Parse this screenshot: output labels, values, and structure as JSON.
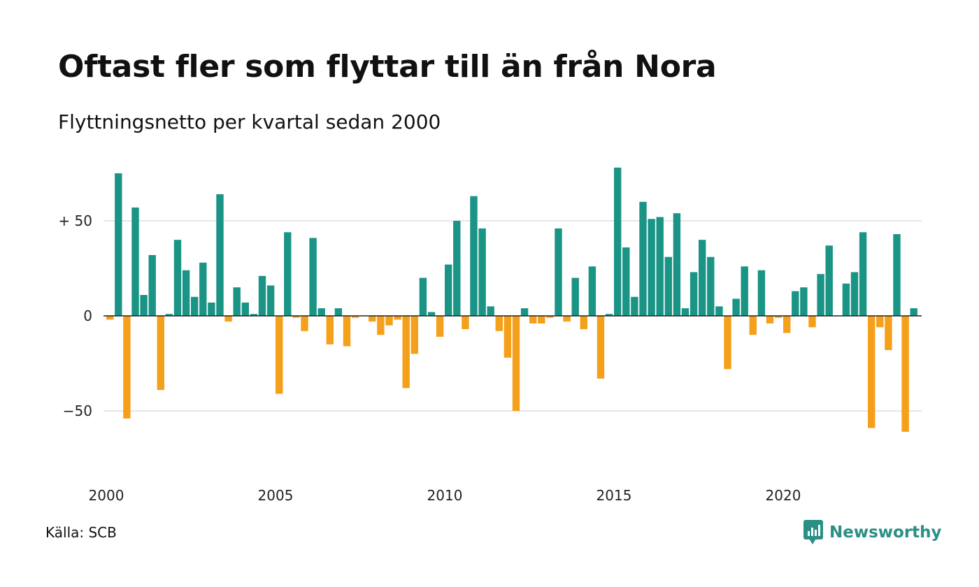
{
  "header": {
    "title": "Oftast fler som flyttar till än från Nora",
    "subtitle": "Flyttningsnetto per kvartal sedan 2000"
  },
  "footer": {
    "source": "Källa: SCB",
    "brand": "Newsworthy"
  },
  "colors": {
    "positive": "#1a9485",
    "negative": "#f5a01a",
    "grid": "#dddddd",
    "axis": "#222222",
    "brand": "#2a8f84"
  },
  "chart_data": {
    "type": "bar",
    "title": "Oftast fler som flyttar till än från Nora",
    "subtitle": "Flyttningsnetto per kvartal sedan 2000",
    "xlabel": "",
    "ylabel": "",
    "start_year": 2000,
    "periods_per_year": 4,
    "ylim": [
      -75,
      80
    ],
    "yticks": [
      {
        "value": 50,
        "label": "+ 50"
      },
      {
        "value": 0,
        "label": "0"
      },
      {
        "value": -50,
        "label": "−50"
      }
    ],
    "xticks": [
      {
        "year": 2000,
        "label": "2000"
      },
      {
        "year": 2005,
        "label": "2005"
      },
      {
        "year": 2010,
        "label": "2010"
      },
      {
        "year": 2015,
        "label": "2015"
      },
      {
        "year": 2020,
        "label": "2020"
      }
    ],
    "grid": true,
    "values": [
      -2,
      75,
      -54,
      57,
      11,
      32,
      -39,
      1,
      40,
      24,
      10,
      28,
      7,
      64,
      -3,
      15,
      7,
      1,
      21,
      16,
      -41,
      44,
      -1,
      -8,
      41,
      4,
      -15,
      4,
      -16,
      -1,
      0,
      -3,
      -10,
      -5,
      -2,
      -38,
      -20,
      20,
      2,
      -11,
      27,
      50,
      -7,
      63,
      46,
      5,
      -8,
      -22,
      -50,
      4,
      -4,
      -4,
      -1,
      46,
      -3,
      20,
      -7,
      26,
      -33,
      1,
      78,
      36,
      10,
      60,
      51,
      52,
      31,
      54,
      4,
      23,
      40,
      31,
      5,
      -28,
      9,
      26,
      -10,
      24,
      -4,
      -1,
      -9,
      13,
      15,
      -6,
      22,
      37,
      0,
      17,
      23,
      44,
      -59,
      -6,
      -18,
      43,
      -61,
      4
    ]
  }
}
